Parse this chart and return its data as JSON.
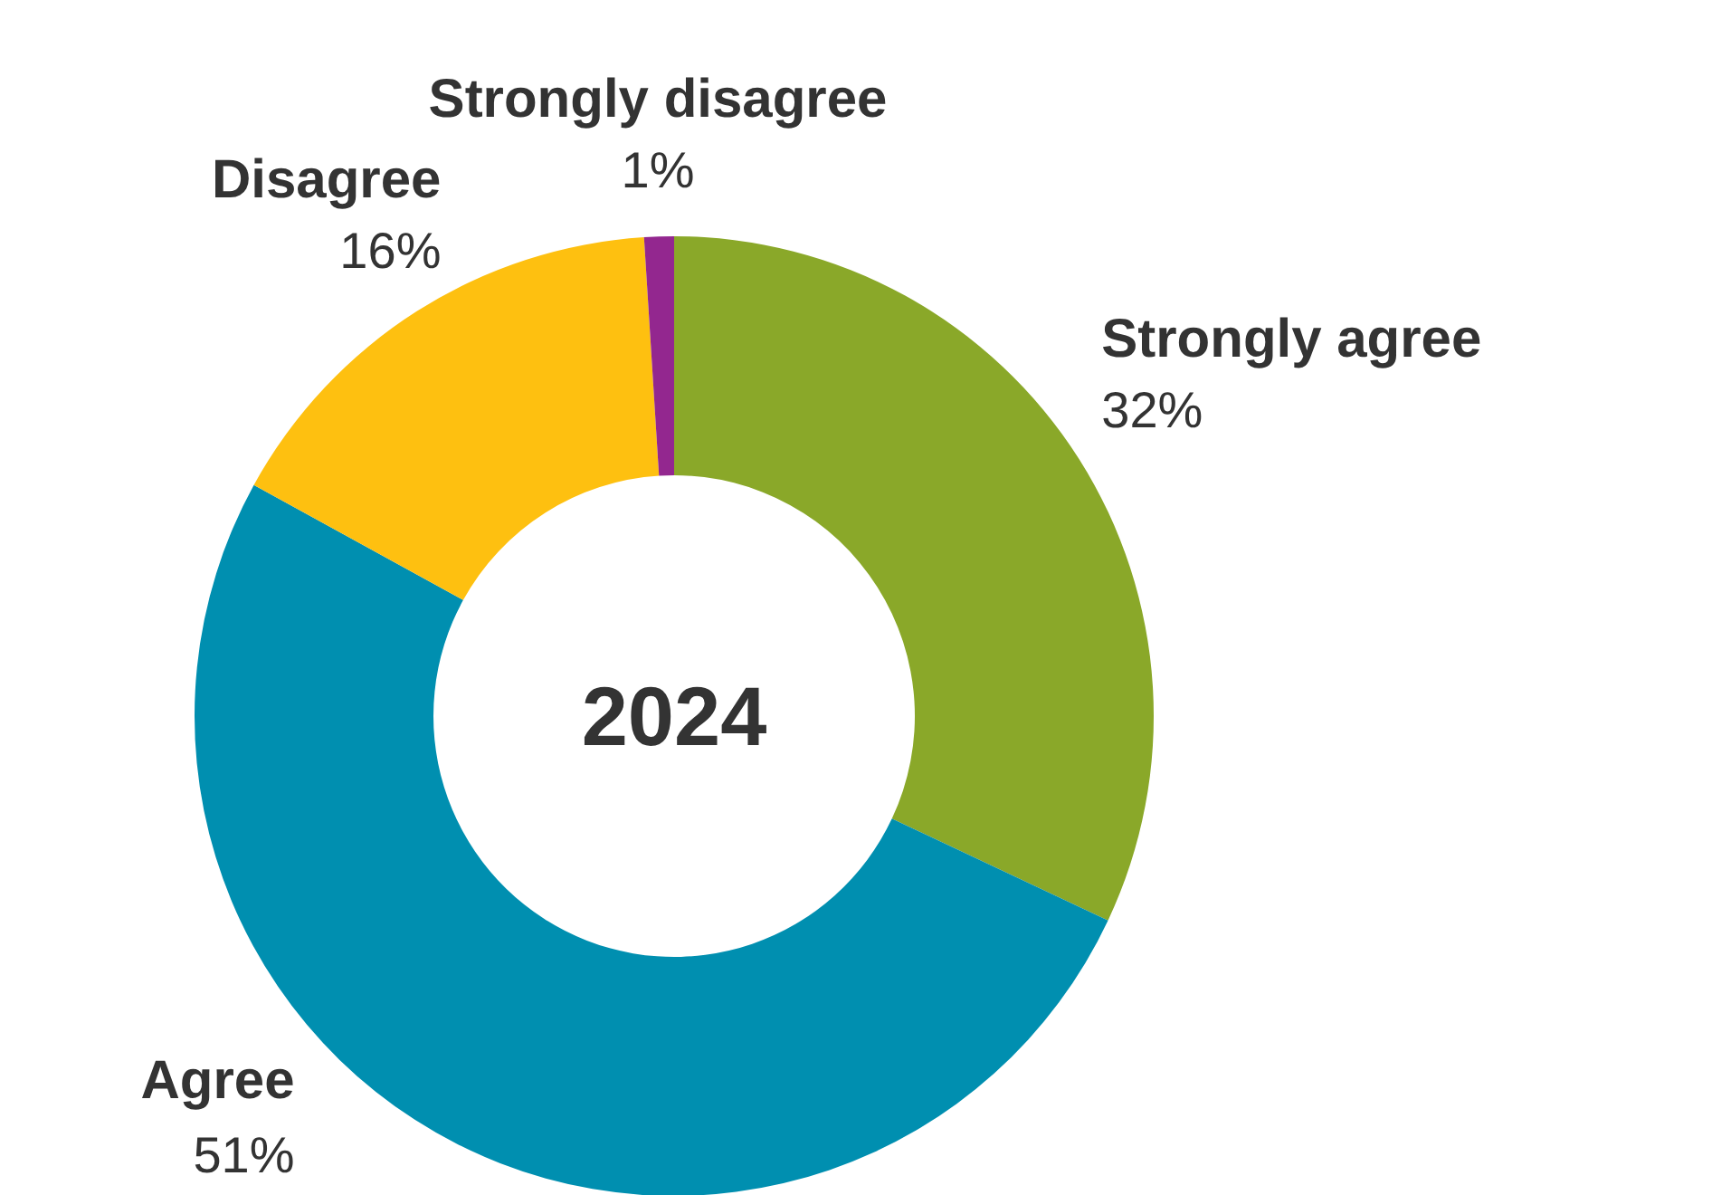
{
  "chart_data": {
    "type": "donut",
    "title": "2024",
    "categories": [
      "Strongly agree",
      "Agree",
      "Disagree",
      "Strongly disagree"
    ],
    "values": [
      32,
      51,
      16,
      1
    ],
    "value_labels": [
      "32%",
      "51%",
      "16%",
      "1%"
    ],
    "colors": [
      "#8aa829",
      "#008fb0",
      "#fec010",
      "#93278f"
    ],
    "legend": false
  }
}
